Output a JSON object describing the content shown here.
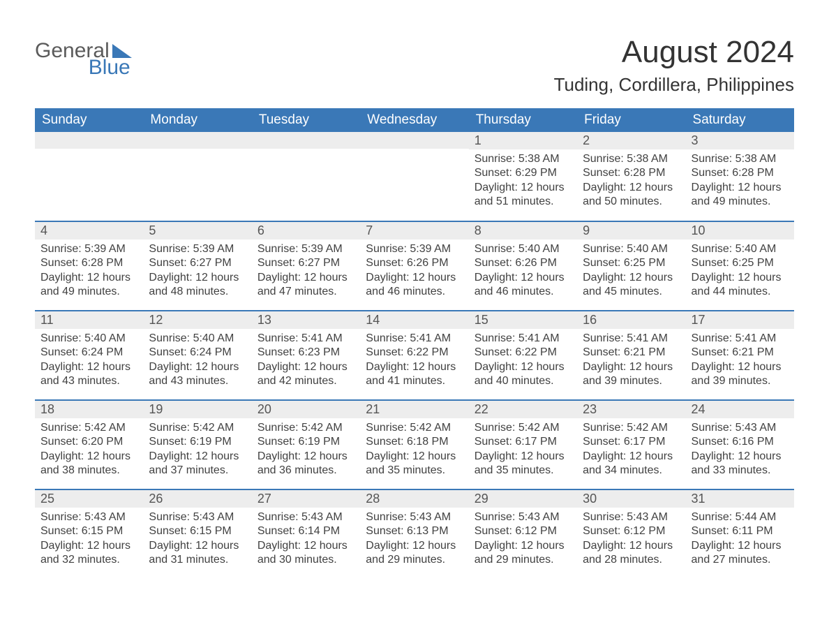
{
  "logo": {
    "word1": "General",
    "word2": "Blue",
    "triangle_color": "#3a78b7"
  },
  "title": "August 2024",
  "location": "Tuding, Cordillera, Philippines",
  "colors": {
    "header_bg": "#3a78b7",
    "header_text": "#ffffff",
    "daynum_bg": "#ededed",
    "body_text": "#414141",
    "page_bg": "#ffffff",
    "row_border": "#3a78b7"
  },
  "fonts": {
    "title_size": 44,
    "location_size": 26,
    "header_size": 19,
    "daynum_size": 18,
    "body_size": 16
  },
  "day_labels": [
    "Sunday",
    "Monday",
    "Tuesday",
    "Wednesday",
    "Thursday",
    "Friday",
    "Saturday"
  ],
  "weeks": [
    [
      null,
      null,
      null,
      null,
      {
        "n": "1",
        "sunrise": "5:38 AM",
        "sunset": "6:29 PM",
        "daylight": "12 hours and 51 minutes."
      },
      {
        "n": "2",
        "sunrise": "5:38 AM",
        "sunset": "6:28 PM",
        "daylight": "12 hours and 50 minutes."
      },
      {
        "n": "3",
        "sunrise": "5:38 AM",
        "sunset": "6:28 PM",
        "daylight": "12 hours and 49 minutes."
      }
    ],
    [
      {
        "n": "4",
        "sunrise": "5:39 AM",
        "sunset": "6:28 PM",
        "daylight": "12 hours and 49 minutes."
      },
      {
        "n": "5",
        "sunrise": "5:39 AM",
        "sunset": "6:27 PM",
        "daylight": "12 hours and 48 minutes."
      },
      {
        "n": "6",
        "sunrise": "5:39 AM",
        "sunset": "6:27 PM",
        "daylight": "12 hours and 47 minutes."
      },
      {
        "n": "7",
        "sunrise": "5:39 AM",
        "sunset": "6:26 PM",
        "daylight": "12 hours and 46 minutes."
      },
      {
        "n": "8",
        "sunrise": "5:40 AM",
        "sunset": "6:26 PM",
        "daylight": "12 hours and 46 minutes."
      },
      {
        "n": "9",
        "sunrise": "5:40 AM",
        "sunset": "6:25 PM",
        "daylight": "12 hours and 45 minutes."
      },
      {
        "n": "10",
        "sunrise": "5:40 AM",
        "sunset": "6:25 PM",
        "daylight": "12 hours and 44 minutes."
      }
    ],
    [
      {
        "n": "11",
        "sunrise": "5:40 AM",
        "sunset": "6:24 PM",
        "daylight": "12 hours and 43 minutes."
      },
      {
        "n": "12",
        "sunrise": "5:40 AM",
        "sunset": "6:24 PM",
        "daylight": "12 hours and 43 minutes."
      },
      {
        "n": "13",
        "sunrise": "5:41 AM",
        "sunset": "6:23 PM",
        "daylight": "12 hours and 42 minutes."
      },
      {
        "n": "14",
        "sunrise": "5:41 AM",
        "sunset": "6:22 PM",
        "daylight": "12 hours and 41 minutes."
      },
      {
        "n": "15",
        "sunrise": "5:41 AM",
        "sunset": "6:22 PM",
        "daylight": "12 hours and 40 minutes."
      },
      {
        "n": "16",
        "sunrise": "5:41 AM",
        "sunset": "6:21 PM",
        "daylight": "12 hours and 39 minutes."
      },
      {
        "n": "17",
        "sunrise": "5:41 AM",
        "sunset": "6:21 PM",
        "daylight": "12 hours and 39 minutes."
      }
    ],
    [
      {
        "n": "18",
        "sunrise": "5:42 AM",
        "sunset": "6:20 PM",
        "daylight": "12 hours and 38 minutes."
      },
      {
        "n": "19",
        "sunrise": "5:42 AM",
        "sunset": "6:19 PM",
        "daylight": "12 hours and 37 minutes."
      },
      {
        "n": "20",
        "sunrise": "5:42 AM",
        "sunset": "6:19 PM",
        "daylight": "12 hours and 36 minutes."
      },
      {
        "n": "21",
        "sunrise": "5:42 AM",
        "sunset": "6:18 PM",
        "daylight": "12 hours and 35 minutes."
      },
      {
        "n": "22",
        "sunrise": "5:42 AM",
        "sunset": "6:17 PM",
        "daylight": "12 hours and 35 minutes."
      },
      {
        "n": "23",
        "sunrise": "5:42 AM",
        "sunset": "6:17 PM",
        "daylight": "12 hours and 34 minutes."
      },
      {
        "n": "24",
        "sunrise": "5:43 AM",
        "sunset": "6:16 PM",
        "daylight": "12 hours and 33 minutes."
      }
    ],
    [
      {
        "n": "25",
        "sunrise": "5:43 AM",
        "sunset": "6:15 PM",
        "daylight": "12 hours and 32 minutes."
      },
      {
        "n": "26",
        "sunrise": "5:43 AM",
        "sunset": "6:15 PM",
        "daylight": "12 hours and 31 minutes."
      },
      {
        "n": "27",
        "sunrise": "5:43 AM",
        "sunset": "6:14 PM",
        "daylight": "12 hours and 30 minutes."
      },
      {
        "n": "28",
        "sunrise": "5:43 AM",
        "sunset": "6:13 PM",
        "daylight": "12 hours and 29 minutes."
      },
      {
        "n": "29",
        "sunrise": "5:43 AM",
        "sunset": "6:12 PM",
        "daylight": "12 hours and 29 minutes."
      },
      {
        "n": "30",
        "sunrise": "5:43 AM",
        "sunset": "6:12 PM",
        "daylight": "12 hours and 28 minutes."
      },
      {
        "n": "31",
        "sunrise": "5:44 AM",
        "sunset": "6:11 PM",
        "daylight": "12 hours and 27 minutes."
      }
    ]
  ],
  "labels": {
    "sunrise": "Sunrise: ",
    "sunset": "Sunset: ",
    "daylight": "Daylight: "
  }
}
